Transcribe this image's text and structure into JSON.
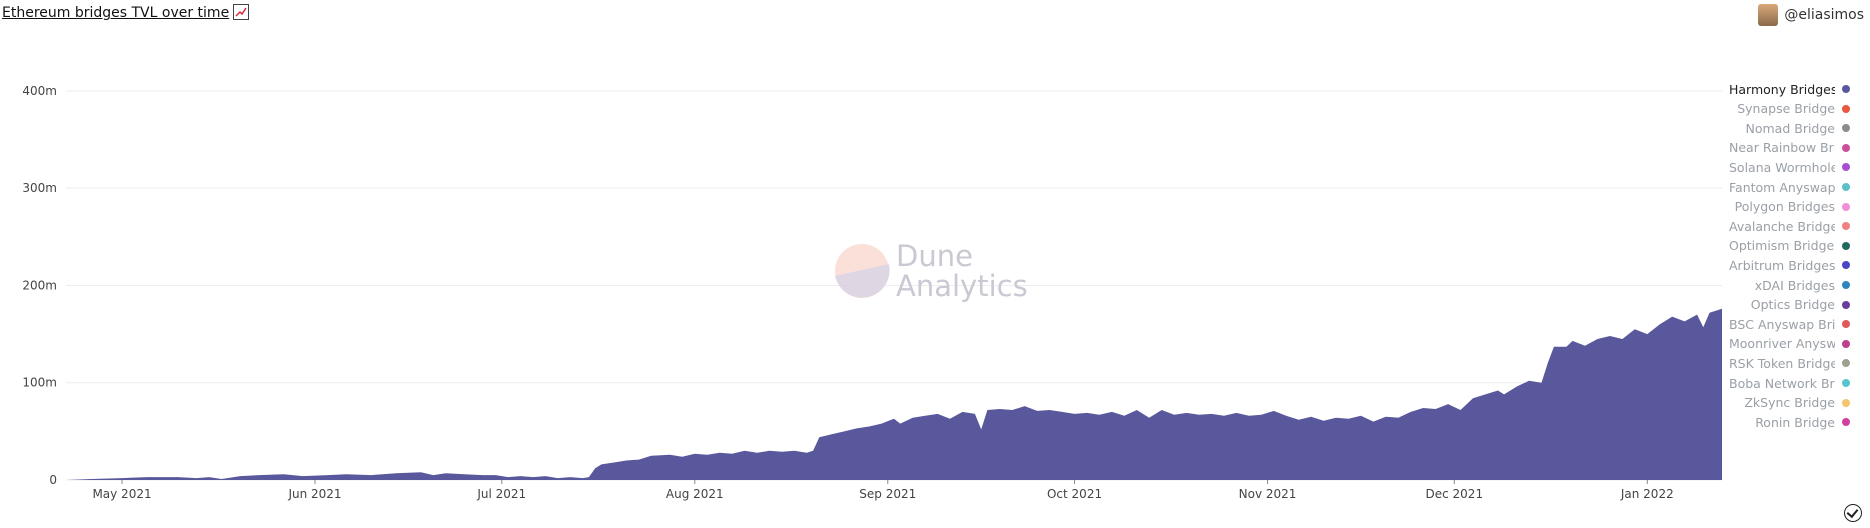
{
  "header": {
    "title": "Ethereum bridges TVL over time",
    "author": "@eliasimos"
  },
  "watermark": {
    "line1": "Dune",
    "line2": "Analytics"
  },
  "colors": {
    "area": "#5a589c",
    "grid": "#eeeeee",
    "axis_text": "#444444"
  },
  "chart_data": {
    "type": "area",
    "title": "Ethereum bridges TVL over time",
    "xlabel": "",
    "ylabel": "",
    "ylim": [
      0,
      440
    ],
    "yticks": [
      0,
      100,
      200,
      300,
      400
    ],
    "ytick_labels": [
      "0",
      "100m",
      "200m",
      "300m",
      "400m"
    ],
    "xrange": [
      "2021-04-22",
      "2022-01-13"
    ],
    "xticks": [
      {
        "date": "2021-05-01",
        "label": "May 2021"
      },
      {
        "date": "2021-06-01",
        "label": "Jun 2021"
      },
      {
        "date": "2021-07-01",
        "label": "Jul 2021"
      },
      {
        "date": "2021-08-01",
        "label": "Aug 2021"
      },
      {
        "date": "2021-09-01",
        "label": "Sep 2021"
      },
      {
        "date": "2021-10-01",
        "label": "Oct 2021"
      },
      {
        "date": "2021-11-01",
        "label": "Nov 2021"
      },
      {
        "date": "2021-12-01",
        "label": "Dec 2021"
      },
      {
        "date": "2022-01-01",
        "label": "Jan 2022"
      }
    ],
    "series": [
      {
        "name": "Harmony Bridges",
        "color": "#5a589c",
        "points": [
          [
            "2021-04-22",
            0
          ],
          [
            "2021-04-26",
            1
          ],
          [
            "2021-05-01",
            2
          ],
          [
            "2021-05-05",
            3
          ],
          [
            "2021-05-10",
            3
          ],
          [
            "2021-05-13",
            2
          ],
          [
            "2021-05-15",
            3
          ],
          [
            "2021-05-17",
            1
          ],
          [
            "2021-05-20",
            4
          ],
          [
            "2021-05-23",
            5
          ],
          [
            "2021-05-27",
            6
          ],
          [
            "2021-05-30",
            4
          ],
          [
            "2021-06-03",
            5
          ],
          [
            "2021-06-06",
            6
          ],
          [
            "2021-06-10",
            5
          ],
          [
            "2021-06-14",
            7
          ],
          [
            "2021-06-18",
            8
          ],
          [
            "2021-06-20",
            5
          ],
          [
            "2021-06-22",
            7
          ],
          [
            "2021-06-25",
            6
          ],
          [
            "2021-06-28",
            5
          ],
          [
            "2021-06-30",
            5
          ],
          [
            "2021-07-02",
            3
          ],
          [
            "2021-07-04",
            4
          ],
          [
            "2021-07-06",
            3
          ],
          [
            "2021-07-08",
            4
          ],
          [
            "2021-07-10",
            2
          ],
          [
            "2021-07-12",
            3
          ],
          [
            "2021-07-14",
            2
          ],
          [
            "2021-07-15",
            3
          ],
          [
            "2021-07-16",
            12
          ],
          [
            "2021-07-17",
            16
          ],
          [
            "2021-07-19",
            18
          ],
          [
            "2021-07-21",
            20
          ],
          [
            "2021-07-23",
            21
          ],
          [
            "2021-07-25",
            25
          ],
          [
            "2021-07-28",
            26
          ],
          [
            "2021-07-30",
            24
          ],
          [
            "2021-08-01",
            27
          ],
          [
            "2021-08-03",
            26
          ],
          [
            "2021-08-05",
            28
          ],
          [
            "2021-08-07",
            27
          ],
          [
            "2021-08-09",
            30
          ],
          [
            "2021-08-11",
            28
          ],
          [
            "2021-08-13",
            30
          ],
          [
            "2021-08-15",
            29
          ],
          [
            "2021-08-17",
            30
          ],
          [
            "2021-08-19",
            28
          ],
          [
            "2021-08-20",
            30
          ],
          [
            "2021-08-21",
            44
          ],
          [
            "2021-08-23",
            47
          ],
          [
            "2021-08-25",
            50
          ],
          [
            "2021-08-27",
            53
          ],
          [
            "2021-08-29",
            55
          ],
          [
            "2021-08-31",
            58
          ],
          [
            "2021-09-02",
            63
          ],
          [
            "2021-09-03",
            58
          ],
          [
            "2021-09-05",
            64
          ],
          [
            "2021-09-07",
            66
          ],
          [
            "2021-09-09",
            68
          ],
          [
            "2021-09-11",
            63
          ],
          [
            "2021-09-13",
            70
          ],
          [
            "2021-09-15",
            68
          ],
          [
            "2021-09-16",
            52
          ],
          [
            "2021-09-17",
            72
          ],
          [
            "2021-09-19",
            73
          ],
          [
            "2021-09-21",
            72
          ],
          [
            "2021-09-23",
            76
          ],
          [
            "2021-09-25",
            71
          ],
          [
            "2021-09-27",
            72
          ],
          [
            "2021-09-29",
            70
          ],
          [
            "2021-10-01",
            68
          ],
          [
            "2021-10-03",
            69
          ],
          [
            "2021-10-05",
            67
          ],
          [
            "2021-10-07",
            70
          ],
          [
            "2021-10-09",
            66
          ],
          [
            "2021-10-11",
            72
          ],
          [
            "2021-10-13",
            64
          ],
          [
            "2021-10-15",
            72
          ],
          [
            "2021-10-17",
            67
          ],
          [
            "2021-10-19",
            69
          ],
          [
            "2021-10-21",
            67
          ],
          [
            "2021-10-23",
            68
          ],
          [
            "2021-10-25",
            66
          ],
          [
            "2021-10-27",
            69
          ],
          [
            "2021-10-29",
            66
          ],
          [
            "2021-10-31",
            67
          ],
          [
            "2021-11-02",
            71
          ],
          [
            "2021-11-04",
            66
          ],
          [
            "2021-11-06",
            62
          ],
          [
            "2021-11-08",
            65
          ],
          [
            "2021-11-10",
            61
          ],
          [
            "2021-11-12",
            64
          ],
          [
            "2021-11-14",
            63
          ],
          [
            "2021-11-16",
            66
          ],
          [
            "2021-11-18",
            60
          ],
          [
            "2021-11-20",
            65
          ],
          [
            "2021-11-22",
            64
          ],
          [
            "2021-11-24",
            70
          ],
          [
            "2021-11-26",
            74
          ],
          [
            "2021-11-28",
            73
          ],
          [
            "2021-11-30",
            78
          ],
          [
            "2021-12-02",
            72
          ],
          [
            "2021-12-04",
            84
          ],
          [
            "2021-12-06",
            88
          ],
          [
            "2021-12-08",
            92
          ],
          [
            "2021-12-09",
            88
          ],
          [
            "2021-12-11",
            96
          ],
          [
            "2021-12-13",
            102
          ],
          [
            "2021-12-15",
            100
          ],
          [
            "2021-12-16",
            120
          ],
          [
            "2021-12-17",
            137
          ],
          [
            "2021-12-19",
            137
          ],
          [
            "2021-12-20",
            143
          ],
          [
            "2021-12-22",
            138
          ],
          [
            "2021-12-24",
            145
          ],
          [
            "2021-12-26",
            148
          ],
          [
            "2021-12-28",
            145
          ],
          [
            "2021-12-30",
            155
          ],
          [
            "2022-01-01",
            150
          ],
          [
            "2022-01-03",
            160
          ],
          [
            "2022-01-05",
            168
          ],
          [
            "2022-01-07",
            163
          ],
          [
            "2022-01-09",
            170
          ],
          [
            "2022-01-10",
            157
          ],
          [
            "2022-01-11",
            172
          ],
          [
            "2022-01-13",
            176
          ]
        ]
      }
    ]
  },
  "legend": [
    {
      "label": "Harmony Bridges",
      "color": "#5a589c",
      "active": true
    },
    {
      "label": "Synapse Bridge",
      "color": "#e9573f",
      "active": false
    },
    {
      "label": "Nomad Bridge",
      "color": "#8c8c8c",
      "active": false
    },
    {
      "label": "Near Rainbow Bric",
      "color": "#cc4f9e",
      "active": false
    },
    {
      "label": "Solana Wormhole",
      "color": "#a64fd6",
      "active": false
    },
    {
      "label": "Fantom Anyswap I",
      "color": "#5bc0c8",
      "active": false
    },
    {
      "label": "Polygon Bridges",
      "color": "#f08fd8",
      "active": false
    },
    {
      "label": "Avalanche Bridge",
      "color": "#f08080",
      "active": false
    },
    {
      "label": "Optimism Bridges",
      "color": "#1f6b5e",
      "active": false
    },
    {
      "label": "Arbitrum Bridges",
      "color": "#4a45c4",
      "active": false
    },
    {
      "label": "xDAI Bridges",
      "color": "#2e86c1",
      "active": false
    },
    {
      "label": "Optics Bridge",
      "color": "#6a3d9a",
      "active": false
    },
    {
      "label": "BSC Anyswap Brid",
      "color": "#e05a5a",
      "active": false
    },
    {
      "label": "Moonriver Anyswa",
      "color": "#c03c8c",
      "active": false
    },
    {
      "label": "RSK Token Bridge",
      "color": "#a0a090",
      "active": false
    },
    {
      "label": "Boba Network Bric",
      "color": "#58c4d0",
      "active": false
    },
    {
      "label": "ZkSync Bridge",
      "color": "#f4c56a",
      "active": false
    },
    {
      "label": "Ronin Bridge",
      "color": "#d040a0",
      "active": false
    }
  ]
}
